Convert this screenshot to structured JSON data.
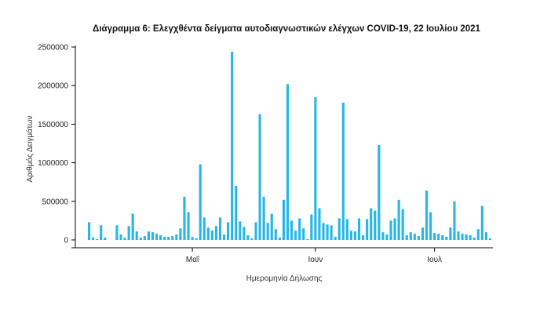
{
  "chart_data": {
    "type": "bar",
    "title": "Διάγραμμα 6: Ελεγχθέντα δείγματα αυτοδιαγνωστικών ελέγχων COVID-19, 22 Ιουλίου 2021",
    "xlabel": "Ημερομηνία Δήλωσης",
    "ylabel": "Αριθμός Δειγμάτων",
    "ylim": [
      0,
      2500000
    ],
    "yticks": [
      0,
      500000,
      1000000,
      1500000,
      2000000,
      2500000
    ],
    "ytick_labels": [
      "0",
      "500000",
      "1000000",
      "1500000",
      "2000000",
      "2500000"
    ],
    "xticks": [
      {
        "label": "Μαΐ",
        "index": 26
      },
      {
        "label": "Ιουν",
        "index": 57
      },
      {
        "label": "Ιουλ",
        "index": 87
      }
    ],
    "grid": false,
    "bar_color": "#29b6e6",
    "values": [
      230000,
      30000,
      10000,
      190000,
      30000,
      0,
      0,
      190000,
      70000,
      30000,
      180000,
      340000,
      110000,
      30000,
      50000,
      110000,
      100000,
      80000,
      60000,
      40000,
      40000,
      50000,
      70000,
      150000,
      560000,
      360000,
      40000,
      20000,
      980000,
      290000,
      160000,
      120000,
      180000,
      290000,
      70000,
      230000,
      2440000,
      700000,
      240000,
      170000,
      60000,
      20000,
      230000,
      1630000,
      560000,
      220000,
      340000,
      140000,
      30000,
      520000,
      2020000,
      250000,
      120000,
      280000,
      150000,
      10000,
      330000,
      1850000,
      410000,
      220000,
      200000,
      190000,
      40000,
      280000,
      1780000,
      270000,
      120000,
      110000,
      280000,
      60000,
      270000,
      410000,
      380000,
      1230000,
      100000,
      70000,
      250000,
      280000,
      520000,
      400000,
      60000,
      100000,
      80000,
      50000,
      160000,
      640000,
      360000,
      90000,
      80000,
      60000,
      40000,
      160000,
      500000,
      110000,
      80000,
      70000,
      60000,
      30000,
      140000,
      440000,
      100000,
      20000
    ]
  }
}
